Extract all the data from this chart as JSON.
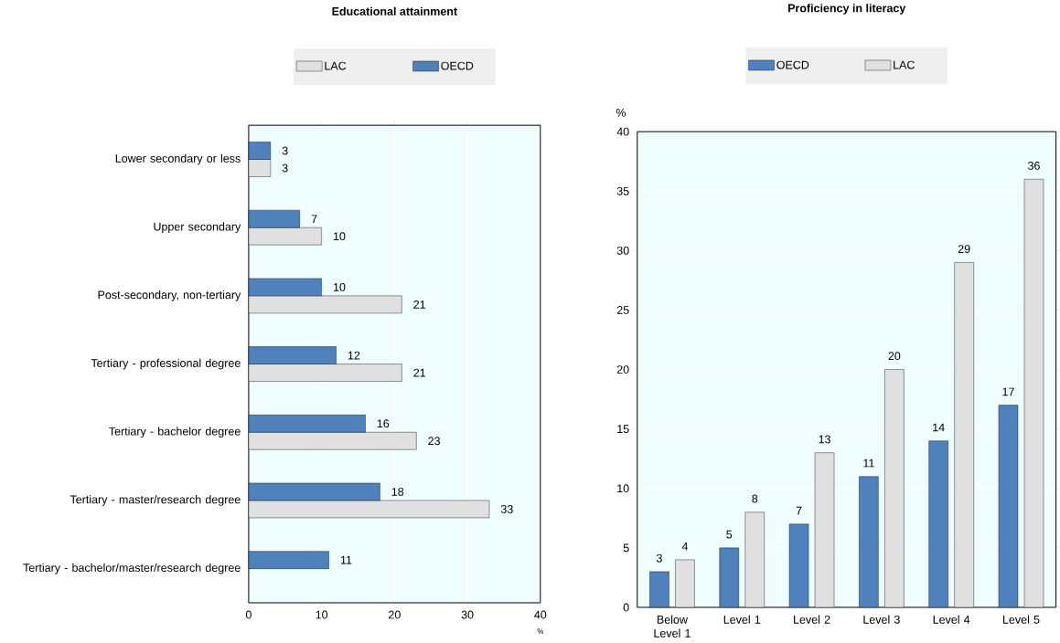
{
  "chart_data": [
    {
      "type": "bar",
      "orientation": "horizontal",
      "title": "Educational attainment",
      "xlabel": "%",
      "categories": [
        "Lower secondary or less",
        "Upper secondary",
        "Post-secondary, non-tertiary",
        "Tertiary - professional degree",
        "Tertiary - bachelor degree",
        "Tertiary - master/research degree",
        "Tertiary - bachelor/master/research degree"
      ],
      "series": [
        {
          "name": "LAC",
          "color": "#e0e0e0",
          "values": [
            3,
            10,
            21,
            21,
            23,
            33,
            null
          ]
        },
        {
          "name": "OECD",
          "color": "#4f81bd",
          "values": [
            3,
            7,
            10,
            12,
            16,
            18,
            11
          ]
        }
      ],
      "xlim": [
        0,
        40
      ],
      "xticks": [
        0,
        10,
        20,
        30,
        40
      ],
      "grid": "x",
      "legend": "top",
      "data_labels": true
    },
    {
      "type": "bar",
      "title": "Proficiency in literacy",
      "ylabel": "%",
      "categories": [
        "Below Level 1",
        "Level 1",
        "Level 2",
        "Level 3",
        "Level 4",
        "Level 5"
      ],
      "series": [
        {
          "name": "OECD",
          "color": "#4f81bd",
          "values": [
            3,
            5,
            7,
            11,
            14,
            17
          ]
        },
        {
          "name": "LAC",
          "color": "#e0e0e0",
          "values": [
            4,
            8,
            13,
            20,
            29,
            36
          ]
        }
      ],
      "ylim": [
        0,
        40
      ],
      "yticks": [
        0,
        5,
        10,
        15,
        20,
        25,
        30,
        35,
        40
      ],
      "grid": "y",
      "legend": "top",
      "data_labels": true
    }
  ]
}
